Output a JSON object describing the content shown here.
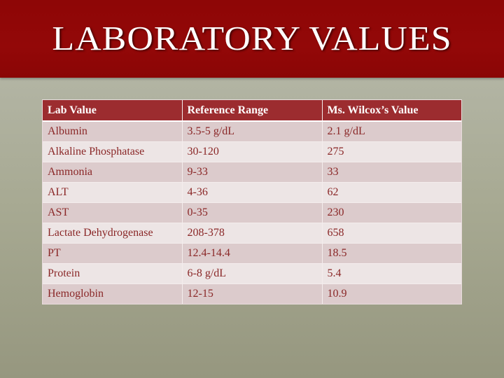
{
  "slide": {
    "title": "Laboratory Values"
  },
  "colors": {
    "title_bar": "#930808",
    "header_row": "#9c2c2f",
    "row_odd": "#dccbcc",
    "row_even": "#ede5e5",
    "cell_text": "#8a2727",
    "background": "#a7a992"
  },
  "table": {
    "headers": [
      "Lab Value",
      "Reference Range",
      "Ms. Wilcox’s Value"
    ],
    "rows": [
      [
        "Albumin",
        "3.5-5 g/dL",
        "2.1 g/dL"
      ],
      [
        "Alkaline Phosphatase",
        "30-120",
        "275"
      ],
      [
        "Ammonia",
        "9-33",
        "33"
      ],
      [
        "ALT",
        "4-36",
        "62"
      ],
      [
        "AST",
        "0-35",
        "230"
      ],
      [
        "Lactate Dehydrogenase",
        "208-378",
        "658"
      ],
      [
        "PT",
        "12.4-14.4",
        "18.5"
      ],
      [
        "Protein",
        "6-8 g/dL",
        "5.4"
      ],
      [
        "Hemoglobin",
        "12-15",
        "10.9"
      ]
    ]
  }
}
